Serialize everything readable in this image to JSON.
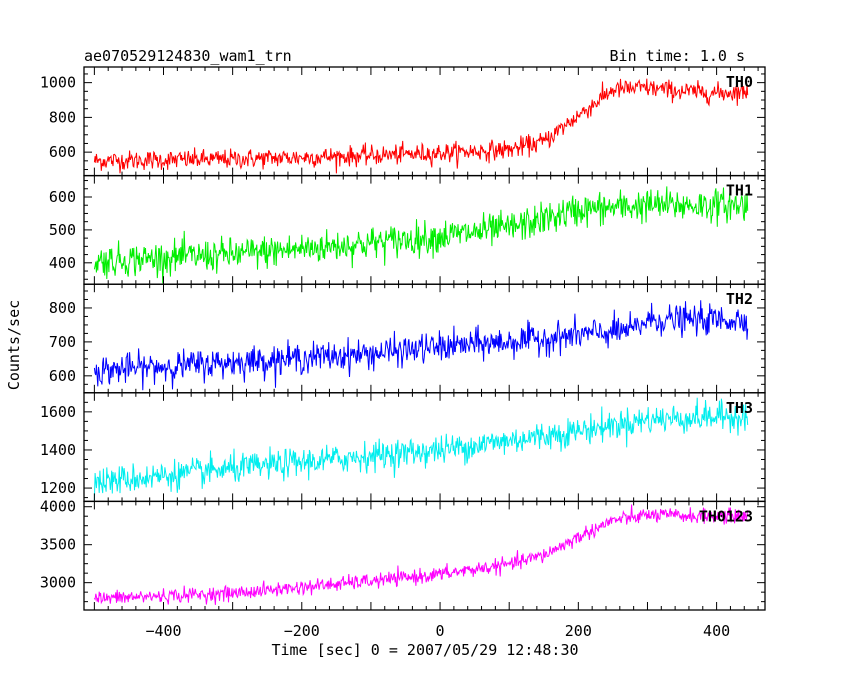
{
  "chart_data": {
    "type": "line",
    "title": "ae070529124830_wam1_trn",
    "subtitle": "Bin time: 1.0 s",
    "xlabel": "Time [sec] 0 = 2007/05/29 12:48:30",
    "ylabel": "Counts/sec",
    "xlim": [
      -515,
      470
    ],
    "x_range": [
      -500,
      445
    ],
    "xticks": [
      -400,
      -200,
      0,
      200,
      400
    ],
    "grid": false,
    "panels": [
      {
        "name": "TH0",
        "color": "#ff0000",
        "ylim": [
          465,
          1090
        ],
        "yticks": [
          600,
          800,
          1000
        ],
        "trend_x": [
          -500,
          -300,
          -100,
          0,
          100,
          150,
          200,
          250,
          300,
          350,
          400,
          445
        ],
        "trend_y": [
          550,
          560,
          580,
          595,
          615,
          660,
          810,
          960,
          970,
          950,
          940,
          950
        ],
        "noise": 28
      },
      {
        "name": "TH1",
        "color": "#00ee00",
        "ylim": [
          335,
          665
        ],
        "yticks": [
          400,
          500,
          600
        ],
        "trend_x": [
          -500,
          -300,
          -100,
          0,
          100,
          200,
          300,
          445
        ],
        "trend_y": [
          405,
          425,
          460,
          480,
          505,
          560,
          575,
          575
        ],
        "noise": 25
      },
      {
        "name": "TH2",
        "color": "#0000ff",
        "ylim": [
          550,
          870
        ],
        "yticks": [
          600,
          700,
          800
        ],
        "trend_x": [
          -500,
          -300,
          -100,
          0,
          100,
          200,
          280,
          300,
          445
        ],
        "trend_y": [
          615,
          640,
          665,
          685,
          700,
          720,
          735,
          765,
          765
        ],
        "noise": 22
      },
      {
        "name": "TH3",
        "color": "#00eeee",
        "ylim": [
          1130,
          1700
        ],
        "yticks": [
          1200,
          1400,
          1600
        ],
        "trend_x": [
          -500,
          -300,
          -100,
          0,
          100,
          200,
          300,
          445
        ],
        "trend_y": [
          1230,
          1300,
          1370,
          1400,
          1450,
          1500,
          1560,
          1580
        ],
        "noise": 38
      },
      {
        "name": "TH0123",
        "color": "#ff00ff",
        "ylim": [
          2640,
          4070
        ],
        "yticks": [
          3000,
          3500,
          4000
        ],
        "trend_x": [
          -500,
          -300,
          -100,
          0,
          100,
          150,
          200,
          250,
          300,
          350,
          400,
          445
        ],
        "trend_y": [
          2790,
          2860,
          3020,
          3110,
          3240,
          3360,
          3600,
          3820,
          3890,
          3880,
          3870,
          3880
        ],
        "noise": 48
      }
    ]
  }
}
